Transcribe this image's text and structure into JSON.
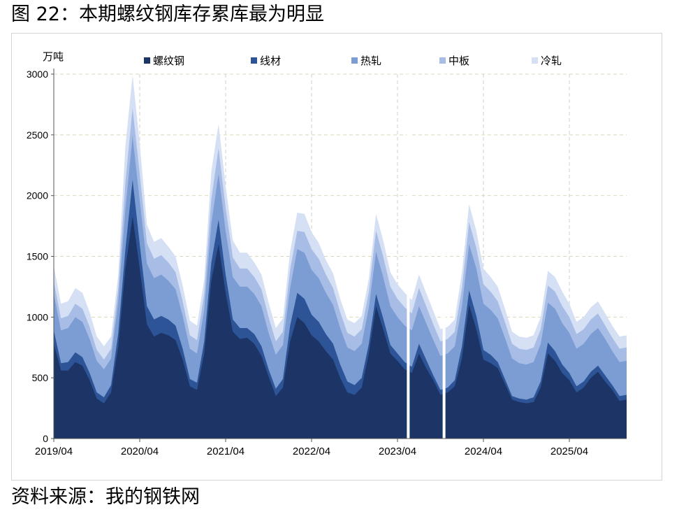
{
  "figure": {
    "title": "图 22：本期螺纹钢库存累库最为明显",
    "source": "资料来源：我的钢铁网"
  },
  "chart_data": {
    "type": "area",
    "stacked": true,
    "y_unit_label": "万吨",
    "ylim": [
      0,
      3000
    ],
    "y_ticks": [
      0,
      500,
      1000,
      1500,
      2000,
      2500,
      3000
    ],
    "x_ticks": [
      "2019/04",
      "2020/04",
      "2021/04",
      "2022/04",
      "2023/04",
      "2024/04",
      "2025/04"
    ],
    "xlim": [
      "2019/04",
      "2025/12"
    ],
    "grid": "dashed",
    "legend_position": "top",
    "x": [
      "2019/04",
      "2019/05",
      "2019/06",
      "2019/07",
      "2019/08",
      "2019/09",
      "2019/10",
      "2019/11",
      "2019/12",
      "2020/01",
      "2020/02",
      "2020/03",
      "2020/04",
      "2020/05",
      "2020/06",
      "2020/07",
      "2020/08",
      "2020/09",
      "2020/10",
      "2020/11",
      "2020/12",
      "2021/01",
      "2021/02",
      "2021/03",
      "2021/04",
      "2021/05",
      "2021/06",
      "2021/07",
      "2021/08",
      "2021/09",
      "2021/10",
      "2021/11",
      "2021/12",
      "2022/01",
      "2022/02",
      "2022/03",
      "2022/04",
      "2022/05",
      "2022/06",
      "2022/07",
      "2022/08",
      "2022/09",
      "2022/10",
      "2022/11",
      "2022/12",
      "2023/01",
      "2023/02",
      "2023/03",
      "2023/04",
      "2023/05",
      "2023/06",
      "2023/07",
      "2023/08",
      "2023/09",
      "2023/10",
      "2023/11",
      "2023/12",
      "2024/01",
      "2024/02",
      "2024/03",
      "2024/04",
      "2024/05",
      "2024/06",
      "2024/07",
      "2024/08",
      "2024/09",
      "2024/10",
      "2024/11",
      "2024/12",
      "2025/01",
      "2025/02",
      "2025/03",
      "2025/04",
      "2025/05",
      "2025/06",
      "2025/07",
      "2025/08",
      "2025/09",
      "2025/10",
      "2025/11",
      "2025/12"
    ],
    "series": [
      {
        "name": "螺纹钢",
        "color": "#1c3566",
        "values": [
          780,
          560,
          560,
          630,
          600,
          480,
          330,
          290,
          380,
          760,
          1400,
          1830,
          1400,
          940,
          840,
          870,
          850,
          810,
          650,
          430,
          400,
          700,
          1300,
          1600,
          1200,
          880,
          820,
          830,
          780,
          680,
          510,
          350,
          420,
          800,
          1000,
          950,
          850,
          800,
          720,
          650,
          500,
          380,
          360,
          420,
          700,
          1090,
          900,
          700,
          640,
          570,
          540,
          700,
          580,
          480,
          360,
          380,
          430,
          660,
          1100,
          900,
          650,
          620,
          580,
          450,
          320,
          300,
          290,
          300,
          420,
          700,
          640,
          540,
          480,
          380,
          420,
          500,
          550,
          470,
          400,
          310,
          320
        ]
      },
      {
        "name": "线材",
        "color": "#2c5496",
        "values": [
          110,
          60,
          70,
          80,
          70,
          60,
          50,
          50,
          60,
          110,
          160,
          300,
          200,
          150,
          140,
          140,
          130,
          120,
          90,
          60,
          60,
          100,
          150,
          200,
          150,
          100,
          90,
          80,
          80,
          80,
          60,
          60,
          70,
          130,
          200,
          200,
          170,
          160,
          140,
          130,
          110,
          90,
          80,
          80,
          80,
          100,
          90,
          70,
          60,
          60,
          50,
          80,
          70,
          40,
          40,
          40,
          50,
          100,
          120,
          110,
          80,
          70,
          50,
          40,
          30,
          30,
          30,
          40,
          50,
          90,
          80,
          70,
          60,
          50,
          50,
          50,
          50,
          50,
          40,
          40,
          40
        ]
      },
      {
        "name": "热轧",
        "color": "#7c9dd4",
        "values": [
          300,
          270,
          280,
          290,
          290,
          280,
          260,
          230,
          220,
          260,
          330,
          360,
          360,
          350,
          340,
          340,
          320,
          300,
          270,
          250,
          240,
          260,
          320,
          380,
          360,
          350,
          340,
          340,
          330,
          330,
          300,
          280,
          280,
          310,
          360,
          380,
          370,
          360,
          340,
          320,
          300,
          280,
          280,
          280,
          300,
          350,
          340,
          320,
          300,
          300,
          300,
          310,
          300,
          290,
          280,
          280,
          280,
          330,
          380,
          390,
          380,
          370,
          360,
          340,
          310,
          290,
          290,
          290,
          310,
          330,
          350,
          340,
          330,
          310,
          310,
          310,
          310,
          300,
          280,
          280,
          280
        ]
      },
      {
        "name": "中板",
        "color": "#a8bde6",
        "values": [
          100,
          100,
          100,
          110,
          110,
          100,
          90,
          80,
          80,
          110,
          220,
          230,
          220,
          170,
          160,
          160,
          150,
          140,
          120,
          110,
          110,
          130,
          200,
          210,
          190,
          160,
          150,
          150,
          140,
          140,
          130,
          110,
          110,
          150,
          150,
          170,
          170,
          160,
          150,
          140,
          130,
          120,
          120,
          120,
          130,
          170,
          170,
          160,
          150,
          150,
          140,
          150,
          140,
          130,
          120,
          120,
          120,
          150,
          180,
          170,
          160,
          150,
          140,
          130,
          120,
          120,
          120,
          120,
          120,
          140,
          140,
          140,
          130,
          120,
          120,
          120,
          120,
          110,
          110,
          110,
          110
        ]
      },
      {
        "name": "冷轧",
        "color": "#d5e0f5",
        "values": [
          130,
          120,
          120,
          130,
          130,
          120,
          110,
          110,
          100,
          110,
          300,
          270,
          250,
          150,
          140,
          140,
          130,
          130,
          130,
          120,
          120,
          120,
          230,
          200,
          180,
          140,
          130,
          130,
          120,
          120,
          120,
          110,
          110,
          150,
          150,
          150,
          140,
          130,
          120,
          120,
          110,
          110,
          110,
          110,
          110,
          140,
          130,
          120,
          120,
          120,
          110,
          110,
          110,
          110,
          100,
          100,
          100,
          130,
          150,
          140,
          130,
          120,
          120,
          110,
          100,
          100,
          100,
          100,
          100,
          120,
          120,
          120,
          110,
          100,
          100,
          100,
          100,
          100,
          100,
          100,
          100
        ]
      }
    ],
    "gaps": [
      {
        "from": "2023/05",
        "to": "2023/06"
      },
      {
        "from": "2023/10",
        "to": "2023/11"
      }
    ]
  }
}
